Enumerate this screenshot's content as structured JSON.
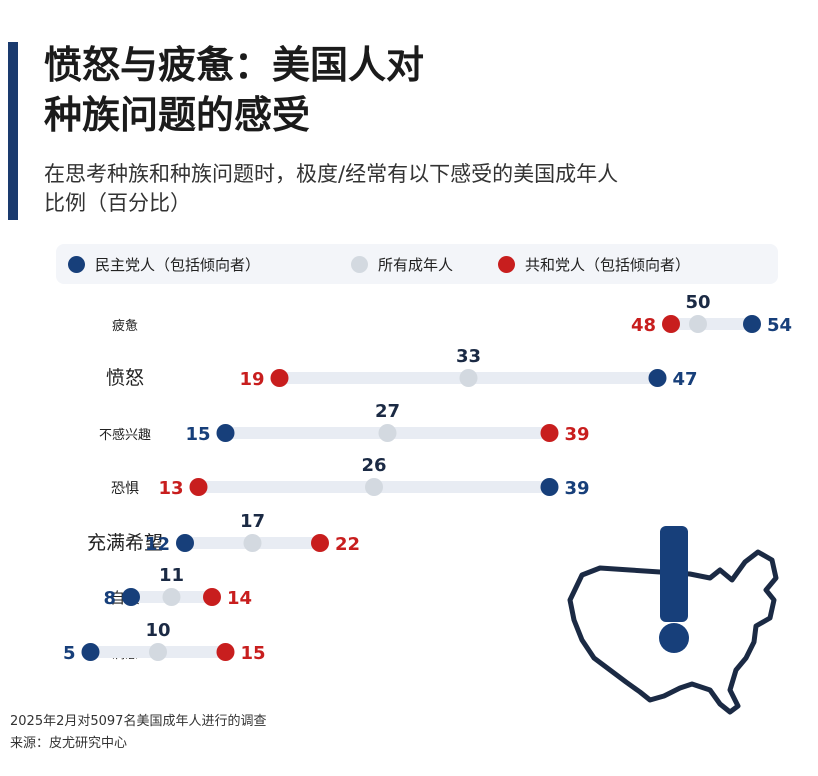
{
  "header": {
    "title_lines": [
      "愤怒与疲惫：美国人对",
      "种族问题的感受"
    ],
    "subtitle_lines": [
      "在思考种族和种族问题时，极度/经常有以下感受的美国成年人",
      "比例（百分比）"
    ]
  },
  "colors": {
    "dem": "#173f7a",
    "all": "#d3d9e0",
    "rep": "#c81e1e",
    "track": "#e8ecf3",
    "accent": "#1a3a6e"
  },
  "legend": [
    {
      "key": "dem",
      "label": "民主党人（包括倾向者）"
    },
    {
      "key": "all",
      "label": "所有成年人"
    },
    {
      "key": "rep",
      "label": "共和党人（包括倾向者）"
    }
  ],
  "chart_data": {
    "type": "dot-range",
    "categories": [
      "疲惫",
      "愤怒",
      "不感兴趣",
      "恐惧",
      "充满希望",
      "自豪",
      "满意"
    ],
    "series": [
      {
        "name": "民主党人（包括倾向者）",
        "values": [
          54,
          47,
          15,
          39,
          12,
          8,
          5
        ]
      },
      {
        "name": "所有成年人",
        "values": [
          50,
          33,
          27,
          26,
          17,
          11,
          10
        ]
      },
      {
        "name": "共和党人（包括倾向者）",
        "values": [
          48,
          19,
          39,
          13,
          22,
          14,
          15
        ]
      }
    ],
    "legend_position": "top"
  },
  "map": {
    "icon": "usa-map-exclamation-icon"
  },
  "footer": {
    "note": "2025年2月对5097名美国成年人进行的调查",
    "source": "来源：皮尤研究中心"
  }
}
